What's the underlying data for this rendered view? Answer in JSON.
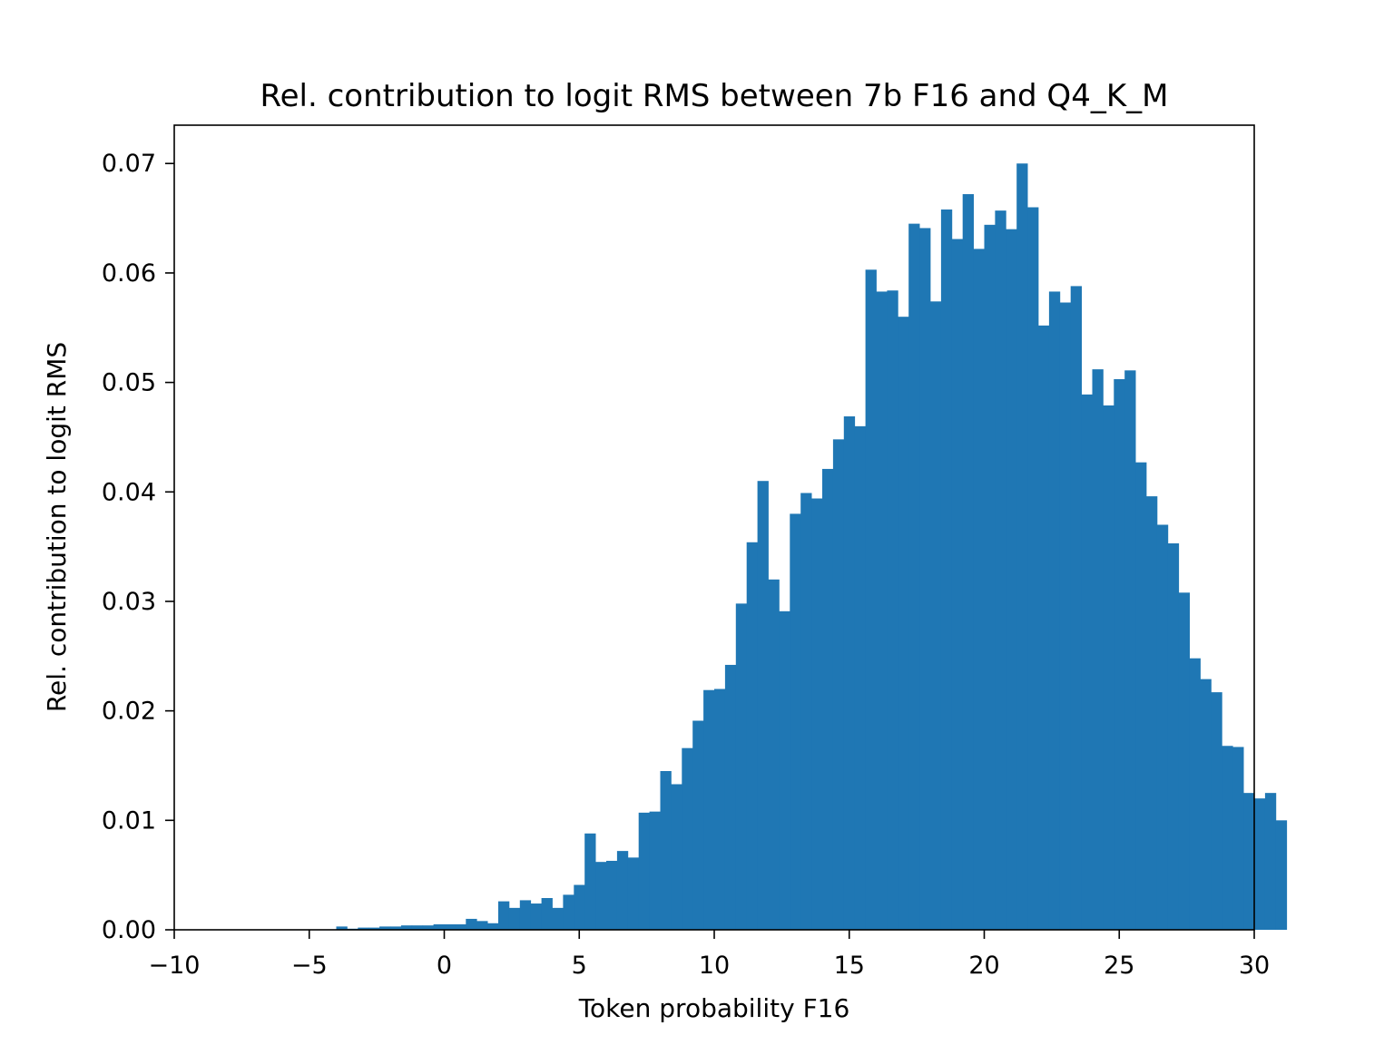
{
  "chart_data": {
    "type": "bar",
    "title": "Rel. contribution to logit RMS between 7b F16 and Q4_K_M",
    "xlabel": "Token probability F16",
    "ylabel": "Rel. contribution to logit RMS",
    "xlim": [
      -10,
      30
    ],
    "ylim": [
      0,
      0.0735
    ],
    "xticks": [
      -10,
      -5,
      0,
      5,
      10,
      15,
      20,
      25,
      30
    ],
    "xtick_labels": [
      "−10",
      "−5",
      "0",
      "5",
      "10",
      "15",
      "20",
      "25",
      "30"
    ],
    "yticks": [
      0.0,
      0.01,
      0.02,
      0.03,
      0.04,
      0.05,
      0.06,
      0.07
    ],
    "ytick_labels": [
      "0.00",
      "0.01",
      "0.02",
      "0.03",
      "0.04",
      "0.05",
      "0.06",
      "0.07"
    ],
    "grid": false,
    "bar_color": "#1f77b4",
    "bin_start": -4,
    "bin_width": 0.4,
    "values": [
      0.0003,
      0.0001,
      0.0002,
      0.0002,
      0.0003,
      0.0003,
      0.0004,
      0.0004,
      0.0004,
      0.0005,
      0.0005,
      0.0005,
      0.001,
      0.0008,
      0.0006,
      0.0026,
      0.002,
      0.0027,
      0.0024,
      0.0029,
      0.002,
      0.0032,
      0.0041,
      0.0088,
      0.0062,
      0.0063,
      0.0072,
      0.0066,
      0.0107,
      0.0108,
      0.0145,
      0.0133,
      0.0166,
      0.0191,
      0.0219,
      0.022,
      0.0242,
      0.0298,
      0.0354,
      0.041,
      0.032,
      0.0291,
      0.038,
      0.0399,
      0.0394,
      0.0421,
      0.0448,
      0.0469,
      0.046,
      0.0603,
      0.0583,
      0.0584,
      0.056,
      0.0645,
      0.0641,
      0.0574,
      0.0658,
      0.0631,
      0.0672,
      0.0622,
      0.0644,
      0.0657,
      0.064,
      0.07,
      0.066,
      0.0552,
      0.0583,
      0.0573,
      0.0588,
      0.0489,
      0.0512,
      0.0479,
      0.0503,
      0.0511,
      0.0427,
      0.0396,
      0.037,
      0.0353,
      0.0308,
      0.0248,
      0.0229,
      0.0217,
      0.0168,
      0.0167,
      0.0125,
      0.012,
      0.0125,
      0.01
    ]
  }
}
